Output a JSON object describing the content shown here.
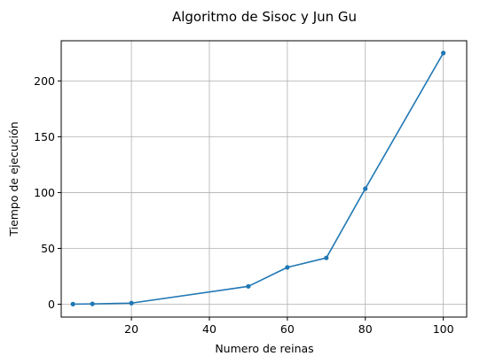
{
  "chart_data": {
    "type": "line",
    "title": "Algoritmo de Sisoc y Jun Gu",
    "xlabel": "Numero de reinas",
    "ylabel": "Tiempo de ejecución",
    "xlim": [
      2,
      106
    ],
    "ylim": [
      -11.5,
      236
    ],
    "xticks": [
      20,
      40,
      60,
      80,
      100
    ],
    "yticks": [
      0,
      50,
      100,
      150,
      200
    ],
    "grid": true,
    "legend": "none",
    "series": [
      {
        "color": "#1f77b4",
        "marker": "circle",
        "x": [
          5,
          10,
          20,
          50,
          60,
          70,
          80,
          100
        ],
        "y": [
          0.1,
          0.3,
          1.0,
          16.0,
          33.0,
          41.5,
          103.5,
          225.0
        ]
      }
    ]
  }
}
